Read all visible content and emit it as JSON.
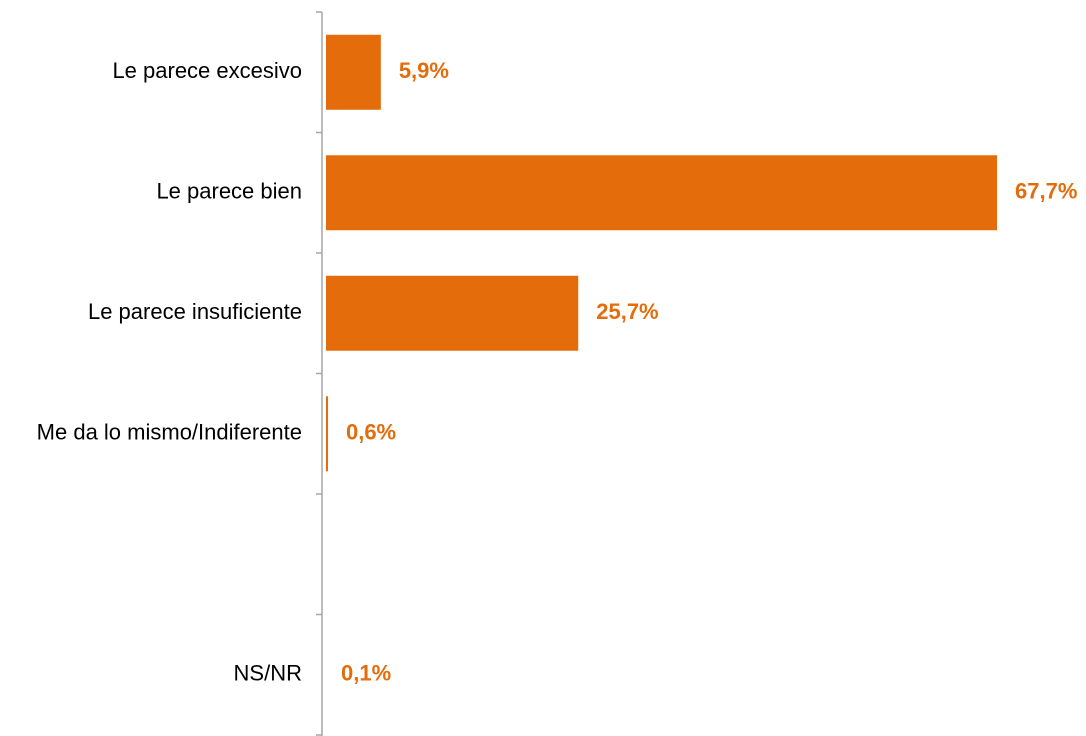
{
  "chart_data": {
    "type": "bar",
    "orientation": "horizontal",
    "categories": [
      "Le parece excesivo",
      "Le parece bien",
      "Le parece insuficiente",
      "Me da lo mismo/Indiferente",
      "",
      "NS/NR"
    ],
    "values": [
      5.9,
      67.7,
      25.7,
      0.6,
      null,
      0.1
    ],
    "data_labels": [
      "5,9%",
      "67,7%",
      "25,7%",
      "0,6%",
      "",
      "0,1%"
    ],
    "title": "",
    "xlabel": "",
    "ylabel": "",
    "xlim": [
      0,
      67.7
    ],
    "grid": false,
    "legend": "none",
    "colors": {
      "bar": "#E46C0A",
      "value_label": "#E46C0A",
      "axis": "#A6A6A6",
      "category_label": "#000000"
    }
  }
}
